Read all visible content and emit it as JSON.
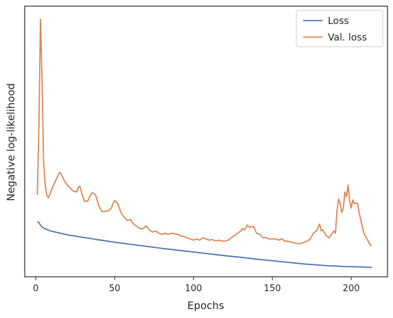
{
  "chart_data": {
    "type": "line",
    "title": "",
    "xlabel": "Epochs",
    "ylabel": "Negative log-likelihood",
    "xlim": [
      -7,
      223
    ],
    "xticks": [
      0,
      50,
      100,
      150,
      200
    ],
    "y_tick_labels_shown": false,
    "grid": false,
    "legend_position": "top-right",
    "series": [
      {
        "name": "Loss",
        "color": "#4c72b0",
        "x": [
          1,
          2,
          3,
          4,
          5,
          7,
          10,
          15,
          20,
          30,
          40,
          50,
          60,
          70,
          80,
          90,
          100,
          110,
          120,
          130,
          140,
          150,
          160,
          170,
          180,
          185,
          190,
          195,
          200,
          205,
          210,
          213
        ],
        "y": [
          0.24,
          0.237,
          0.225,
          0.218,
          0.213,
          0.206,
          0.199,
          0.191,
          0.183,
          0.172,
          0.161,
          0.151,
          0.142,
          0.133,
          0.124,
          0.116,
          0.108,
          0.1,
          0.092,
          0.085,
          0.077,
          0.07,
          0.063,
          0.056,
          0.051,
          0.048,
          0.047,
          0.045,
          0.044,
          0.043,
          0.042,
          0.041
        ]
      },
      {
        "name": "Val. loss",
        "color": "#dd8452",
        "x": [
          1,
          2,
          3,
          4,
          5,
          6,
          7,
          8,
          9,
          10,
          12,
          14,
          15,
          16,
          18,
          20,
          22,
          24,
          26,
          27,
          28,
          30,
          31,
          33,
          35,
          36,
          38,
          40,
          42,
          44,
          46,
          48,
          49,
          50,
          52,
          54,
          56,
          58,
          60,
          62,
          64,
          66,
          68,
          69,
          70,
          72,
          74,
          76,
          78,
          80,
          82,
          84,
          86,
          88,
          90,
          92,
          94,
          96,
          98,
          100,
          102,
          104,
          106,
          108,
          110,
          112,
          114,
          116,
          118,
          120,
          122,
          124,
          126,
          128,
          130,
          131,
          132,
          133,
          134,
          136,
          138,
          140,
          142,
          144,
          146,
          148,
          150,
          152,
          154,
          156,
          158,
          160,
          162,
          164,
          166,
          168,
          170,
          172,
          174,
          176,
          178,
          180,
          181,
          182,
          184,
          186,
          188,
          189,
          190,
          191,
          192,
          193,
          194,
          195,
          196,
          197,
          198,
          199,
          200,
          201,
          202,
          203,
          204,
          205,
          206,
          207,
          208,
          210,
          212,
          213
        ],
        "y": [
          0.357,
          0.65,
          1.123,
          0.86,
          0.5,
          0.4,
          0.357,
          0.345,
          0.36,
          0.38,
          0.41,
          0.44,
          0.455,
          0.45,
          0.42,
          0.4,
          0.385,
          0.373,
          0.37,
          0.39,
          0.395,
          0.345,
          0.33,
          0.33,
          0.36,
          0.367,
          0.355,
          0.31,
          0.285,
          0.285,
          0.288,
          0.3,
          0.32,
          0.332,
          0.32,
          0.28,
          0.26,
          0.245,
          0.25,
          0.23,
          0.22,
          0.21,
          0.21,
          0.215,
          0.222,
          0.205,
          0.195,
          0.2,
          0.19,
          0.185,
          0.19,
          0.185,
          0.19,
          0.188,
          0.185,
          0.178,
          0.175,
          0.17,
          0.165,
          0.16,
          0.165,
          0.16,
          0.17,
          0.165,
          0.16,
          0.162,
          0.156,
          0.16,
          0.156,
          0.155,
          0.16,
          0.17,
          0.18,
          0.19,
          0.2,
          0.21,
          0.205,
          0.21,
          0.225,
          0.215,
          0.22,
          0.19,
          0.185,
          0.17,
          0.17,
          0.165,
          0.165,
          0.165,
          0.16,
          0.165,
          0.155,
          0.155,
          0.15,
          0.148,
          0.145,
          0.145,
          0.15,
          0.155,
          0.165,
          0.19,
          0.2,
          0.23,
          0.2,
          0.205,
          0.18,
          0.17,
          0.19,
          0.2,
          0.19,
          0.29,
          0.34,
          0.32,
          0.28,
          0.3,
          0.37,
          0.35,
          0.4,
          0.33,
          0.3,
          0.335,
          0.32,
          0.32,
          0.32,
          0.28,
          0.25,
          0.22,
          0.19,
          0.165,
          0.14,
          0.135
        ]
      }
    ]
  }
}
